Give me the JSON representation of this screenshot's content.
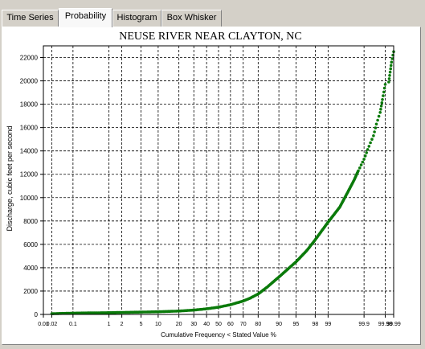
{
  "tabs": [
    {
      "label": "Time Series",
      "active": false
    },
    {
      "label": "Probability",
      "active": true
    },
    {
      "label": "Histogram",
      "active": false
    },
    {
      "label": "Box Whisker",
      "active": false
    }
  ],
  "colors": {
    "series": "#0a7a0a",
    "grid": "#000000",
    "background": "#ffffff"
  },
  "chart_data": {
    "type": "scatter",
    "title": "NEUSE RIVER NEAR CLAYTON, NC",
    "xlabel": "Cumulative Frequency < Stated Value %",
    "ylabel": "Discharge, cubic feet per second",
    "x_scale": "normal-probability",
    "xlim": [
      0.01,
      99.99
    ],
    "ylim": [
      0,
      23000
    ],
    "grid": true,
    "x_ticks": [
      "0.01",
      "0.02",
      "0.1",
      "1",
      "2",
      "5",
      "10",
      "20",
      "30",
      "40",
      "50",
      "60",
      "70",
      "80",
      "90",
      "95",
      "98",
      "99",
      "99.9",
      "99.98",
      "99.99"
    ],
    "y_ticks": [
      "0",
      "2000",
      "4000",
      "6000",
      "8000",
      "10000",
      "12000",
      "14000",
      "16000",
      "18000",
      "20000",
      "22000"
    ],
    "series": [
      {
        "points": [
          [
            0.02,
            60
          ],
          [
            0.05,
            90
          ],
          [
            0.1,
            110
          ],
          [
            0.3,
            130
          ],
          [
            1,
            150
          ],
          [
            2,
            170
          ],
          [
            5,
            200
          ],
          [
            10,
            230
          ],
          [
            20,
            290
          ],
          [
            30,
            370
          ],
          [
            40,
            480
          ],
          [
            50,
            620
          ],
          [
            60,
            830
          ],
          [
            70,
            1150
          ],
          [
            75,
            1400
          ],
          [
            80,
            1750
          ],
          [
            85,
            2350
          ],
          [
            90,
            3200
          ],
          [
            93,
            3900
          ],
          [
            95,
            4500
          ],
          [
            97,
            5500
          ],
          [
            98,
            6400
          ],
          [
            99,
            7900
          ],
          [
            99.5,
            9200
          ],
          [
            99.7,
            10500
          ],
          [
            99.8,
            11500
          ],
          [
            99.85,
            12300
          ],
          [
            99.9,
            13300
          ],
          [
            99.93,
            14400
          ],
          [
            99.95,
            15300
          ],
          [
            99.96,
            16300
          ],
          [
            99.97,
            17300
          ],
          [
            99.975,
            18400
          ],
          [
            99.98,
            19700
          ],
          [
            99.985,
            19900
          ],
          [
            99.988,
            21600
          ],
          [
            99.99,
            22500
          ]
        ]
      }
    ]
  }
}
